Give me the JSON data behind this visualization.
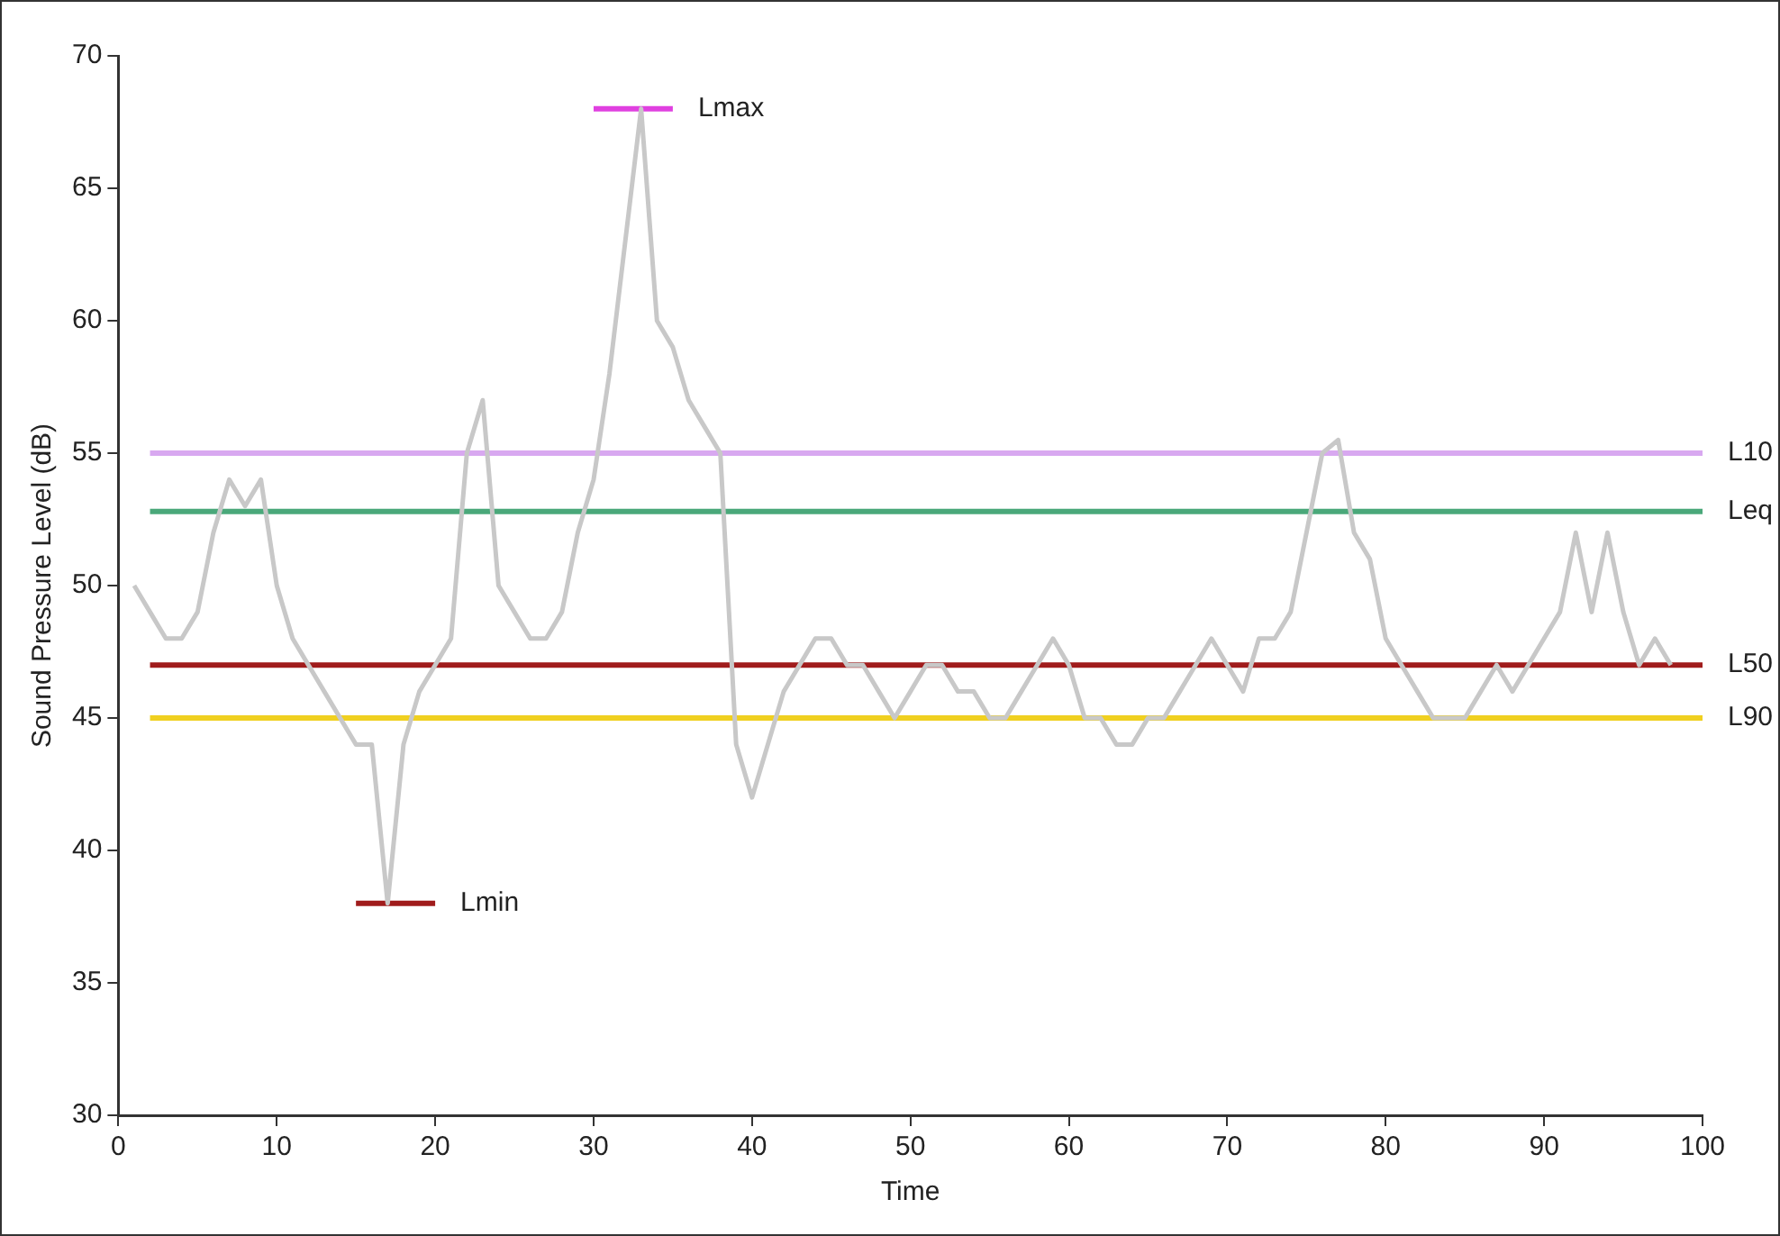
{
  "chart_data": {
    "type": "line",
    "xlabel": "Time",
    "ylabel": "Sound Pressure Level (dB)",
    "xlim": [
      0,
      100
    ],
    "xticks": [
      0,
      10,
      20,
      30,
      40,
      50,
      60,
      70,
      80,
      90,
      100
    ],
    "ylim": [
      30,
      70
    ],
    "yticks": [
      30,
      35,
      40,
      45,
      50,
      55,
      60,
      65,
      70
    ],
    "grid": false,
    "legend": false,
    "marker": "none",
    "line_style": "solid",
    "series": [
      {
        "color": "#c8c8c8",
        "x": [
          1,
          2,
          3,
          4,
          5,
          6,
          7,
          8,
          9,
          10,
          11,
          12,
          13,
          14,
          15,
          16,
          17,
          18,
          19,
          20,
          21,
          22,
          23,
          24,
          25,
          26,
          27,
          28,
          29,
          30,
          31,
          32,
          33,
          34,
          35,
          36,
          37,
          38,
          39,
          40,
          41,
          42,
          43,
          44,
          45,
          46,
          47,
          48,
          49,
          50,
          51,
          52,
          53,
          54,
          55,
          56,
          57,
          58,
          59,
          60,
          61,
          62,
          63,
          64,
          65,
          66,
          67,
          68,
          69,
          70,
          71,
          72,
          73,
          74,
          75,
          76,
          77,
          78,
          79,
          80,
          81,
          82,
          83,
          84,
          85,
          86,
          87,
          88,
          89,
          90,
          91,
          92,
          93,
          94,
          95,
          96,
          97,
          98
        ],
        "values": [
          50,
          49,
          48,
          48,
          49,
          52,
          54,
          53,
          54,
          50,
          48,
          47,
          46,
          45,
          44,
          44,
          38,
          44,
          46,
          47,
          48,
          55,
          57,
          50,
          49,
          48,
          48,
          49,
          52,
          54,
          58,
          63,
          68,
          60,
          59,
          57,
          56,
          55,
          44,
          42,
          44,
          46,
          47,
          48,
          48,
          47,
          47,
          46,
          45,
          46,
          47,
          47,
          46,
          46,
          45,
          45,
          46,
          47,
          48,
          47,
          45,
          45,
          44,
          44,
          45,
          45,
          46,
          47,
          48,
          47,
          46,
          48,
          48,
          49,
          52,
          55,
          55.5,
          52,
          51,
          48,
          47,
          46,
          45,
          45,
          45,
          46,
          47,
          46,
          47,
          48,
          49,
          52,
          49,
          52,
          49,
          47,
          48,
          47
        ]
      },
      {
        "name": "L10",
        "color": "#d8a8f0",
        "x": [
          2,
          100
        ],
        "values": [
          55,
          55
        ]
      },
      {
        "name": "Leq",
        "color": "#4aa87a",
        "x": [
          2,
          100
        ],
        "values": [
          52.8,
          52.8
        ]
      },
      {
        "name": "L50",
        "color": "#a01c1c",
        "x": [
          2,
          100
        ],
        "values": [
          47,
          47
        ]
      },
      {
        "name": "L90",
        "color": "#f0d020",
        "x": [
          2,
          100
        ],
        "values": [
          45,
          45
        ]
      },
      {
        "name": "Lmax",
        "color": "#e040e0",
        "x": [
          30,
          35
        ],
        "values": [
          68,
          68
        ]
      },
      {
        "name": "Lmin",
        "color": "#a01c1c",
        "x": [
          15,
          20
        ],
        "values": [
          38,
          38
        ]
      }
    ]
  }
}
